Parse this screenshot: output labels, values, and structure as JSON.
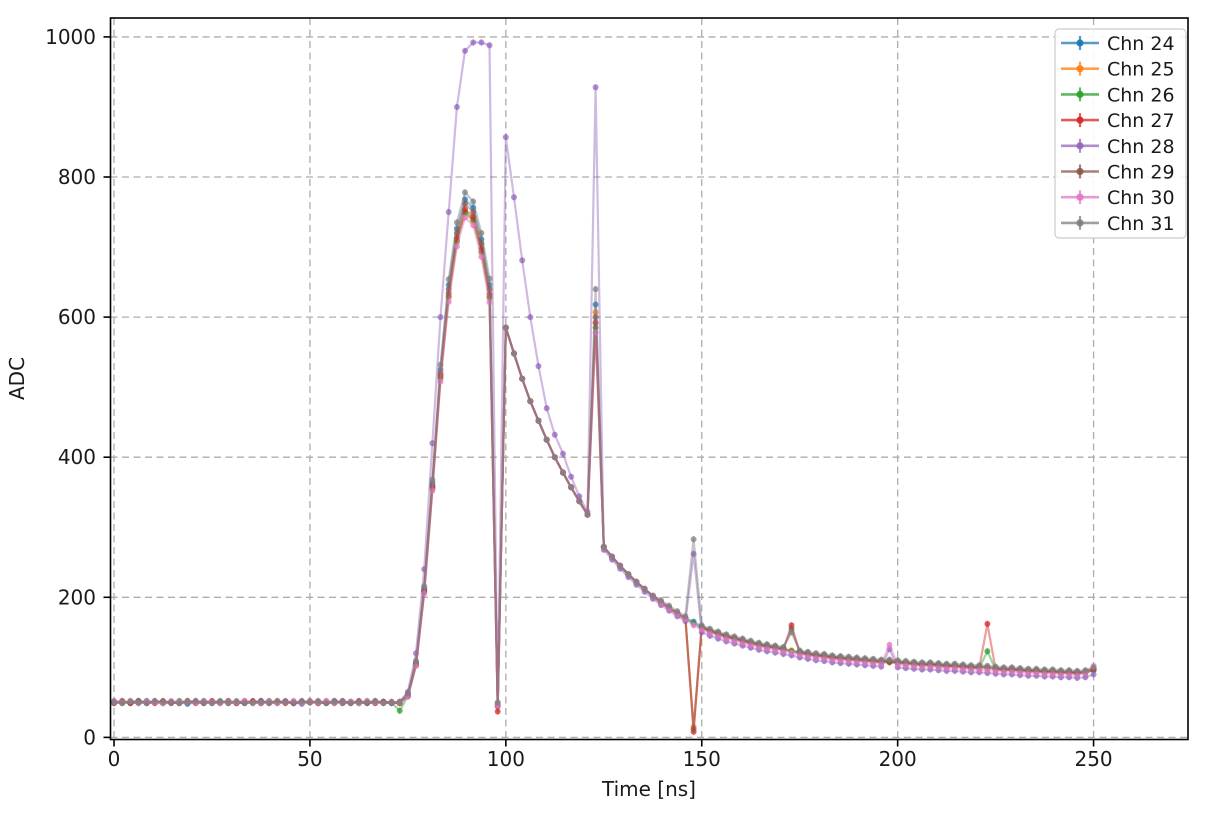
{
  "chart_data": {
    "type": "line",
    "title": "",
    "xlabel": "Time [ns]",
    "ylabel": "ADC",
    "xlim": [
      -0.9,
      274.1
    ],
    "ylim": [
      -3,
      1027
    ],
    "x_ticks": [
      0,
      50,
      100,
      150,
      200,
      250
    ],
    "y_ticks": [
      0,
      200,
      400,
      600,
      800,
      1000
    ],
    "grid": "dashed",
    "legend_position": "upper right",
    "x_start": 0,
    "x_step": 2.0833,
    "marker": "circle-with-errorbar",
    "series": [
      {
        "name": "Chn 24",
        "color": "#1f77b4",
        "values": [
          50,
          51,
          49,
          50,
          52,
          50,
          49,
          51,
          50,
          48,
          50,
          52,
          50,
          49,
          51,
          50,
          49,
          50,
          52,
          50,
          49,
          51,
          50,
          48,
          50,
          51,
          50,
          49,
          51,
          50,
          49,
          50,
          51,
          50,
          49,
          50,
          62,
          107,
          213,
          364,
          525,
          646,
          726,
          768,
          756,
          711,
          646,
          46,
          585,
          548,
          512,
          480,
          452,
          425,
          400,
          378,
          357,
          337,
          318,
          618,
          272,
          258,
          245,
          233,
          222,
          212,
          202,
          193,
          185,
          177,
          170,
          165,
          158,
          153,
          149,
          145,
          142,
          139,
          136,
          133,
          131,
          129,
          127,
          123,
          122,
          120,
          118,
          117,
          115,
          114,
          113,
          112,
          111,
          110,
          109,
          109,
          108,
          107,
          106,
          105,
          105,
          104,
          103,
          103,
          102,
          101,
          101,
          100,
          99,
          98,
          98,
          97,
          96,
          96,
          95,
          95,
          94,
          94,
          93,
          94,
          98
        ]
      },
      {
        "name": "Chn 25",
        "color": "#ff7f0e",
        "values": [
          49,
          50,
          52,
          51,
          49,
          50,
          51,
          49,
          50,
          52,
          49,
          50,
          51,
          50,
          52,
          49,
          50,
          51,
          49,
          50,
          52,
          50,
          49,
          51,
          50,
          49,
          52,
          50,
          51,
          49,
          50,
          52,
          49,
          50,
          51,
          49,
          59,
          103,
          207,
          355,
          512,
          628,
          707,
          748,
          737,
          692,
          627,
          44,
          585,
          548,
          512,
          480,
          452,
          425,
          400,
          378,
          357,
          337,
          318,
          607,
          272,
          258,
          245,
          233,
          222,
          212,
          202,
          193,
          185,
          177,
          170,
          15,
          157,
          152,
          148,
          144,
          141,
          138,
          135,
          132,
          130,
          128,
          126,
          124,
          121,
          119,
          117,
          116,
          114,
          113,
          112,
          111,
          110,
          109,
          108,
          108,
          107,
          106,
          105,
          104,
          104,
          103,
          102,
          102,
          101,
          100,
          100,
          99,
          98,
          97,
          97,
          96,
          95,
          95,
          94,
          94,
          93,
          93,
          92,
          93,
          97
        ]
      },
      {
        "name": "Chn 26",
        "color": "#2ca02c",
        "values": [
          51,
          49,
          50,
          52,
          50,
          51,
          49,
          50,
          52,
          50,
          49,
          51,
          50,
          52,
          49,
          50,
          51,
          49,
          50,
          52,
          50,
          51,
          49,
          50,
          51,
          50,
          49,
          52,
          50,
          51,
          49,
          50,
          51,
          49,
          50,
          38,
          59,
          104,
          208,
          356,
          514,
          630,
          709,
          750,
          739,
          694,
          629,
          45,
          585,
          548,
          512,
          480,
          452,
          425,
          400,
          378,
          357,
          337,
          318,
          585,
          272,
          258,
          245,
          233,
          222,
          212,
          202,
          192,
          184,
          176,
          169,
          163,
          156,
          151,
          147,
          143,
          140,
          137,
          134,
          131,
          129,
          127,
          125,
          123,
          120,
          118,
          116,
          115,
          113,
          112,
          111,
          110,
          109,
          108,
          107,
          107,
          106,
          105,
          104,
          103,
          103,
          102,
          101,
          101,
          100,
          99,
          99,
          123,
          97,
          96,
          96,
          95,
          94,
          94,
          93,
          93,
          92,
          92,
          91,
          92,
          96
        ]
      },
      {
        "name": "Chn 27",
        "color": "#d62728",
        "values": [
          50,
          52,
          49,
          50,
          51,
          49,
          52,
          50,
          49,
          51,
          50,
          49,
          52,
          50,
          51,
          49,
          50,
          52,
          49,
          51,
          50,
          49,
          51,
          50,
          52,
          49,
          50,
          51,
          49,
          50,
          52,
          49,
          50,
          51,
          50,
          49,
          60,
          104,
          209,
          358,
          517,
          634,
          713,
          754,
          743,
          698,
          633,
          37,
          585,
          548,
          512,
          480,
          452,
          425,
          400,
          378,
          357,
          337,
          318,
          592,
          272,
          258,
          245,
          233,
          222,
          212,
          202,
          193,
          185,
          177,
          170,
          8,
          157,
          152,
          148,
          144,
          141,
          138,
          135,
          132,
          130,
          128,
          126,
          160,
          121,
          119,
          117,
          116,
          114,
          113,
          112,
          111,
          110,
          109,
          108,
          108,
          107,
          106,
          105,
          104,
          104,
          103,
          102,
          102,
          101,
          100,
          100,
          162,
          98,
          97,
          97,
          96,
          95,
          95,
          94,
          94,
          93,
          93,
          92,
          93,
          97
        ]
      },
      {
        "name": "Chn 28",
        "color": "#9467bd",
        "values": [
          52,
          50,
          51,
          49,
          50,
          52,
          50,
          49,
          51,
          50,
          52,
          49,
          50,
          51,
          49,
          50,
          52,
          50,
          49,
          51,
          50,
          52,
          49,
          50,
          51,
          49,
          50,
          52,
          49,
          51,
          50,
          49,
          52,
          50,
          49,
          51,
          65,
          120,
          240,
          420,
          600,
          750,
          900,
          980,
          992,
          992,
          988,
          45,
          857,
          771,
          681,
          600,
          530,
          470,
          432,
          405,
          372,
          344,
          322,
          928,
          268,
          254,
          241,
          229,
          218,
          208,
          198,
          189,
          181,
          173,
          166,
          262,
          150,
          145,
          141,
          137,
          134,
          131,
          128,
          125,
          123,
          121,
          119,
          117,
          114,
          112,
          110,
          109,
          107,
          106,
          105,
          104,
          103,
          102,
          101,
          126,
          100,
          99,
          98,
          97,
          97,
          96,
          95,
          95,
          94,
          93,
          93,
          92,
          91,
          90,
          90,
          89,
          88,
          88,
          87,
          87,
          86,
          86,
          85,
          86,
          90
        ]
      },
      {
        "name": "Chn 29",
        "color": "#8c564b",
        "values": [
          49,
          51,
          50,
          52,
          49,
          50,
          51,
          50,
          49,
          52,
          50,
          51,
          49,
          50,
          52,
          49,
          51,
          50,
          52,
          49,
          50,
          51,
          49,
          52,
          50,
          51,
          49,
          50,
          52,
          49,
          51,
          50,
          49,
          51,
          50,
          49,
          60,
          105,
          210,
          360,
          520,
          640,
          720,
          762,
          750,
          705,
          640,
          48,
          585,
          548,
          512,
          480,
          452,
          425,
          400,
          378,
          357,
          337,
          318,
          600,
          272,
          258,
          245,
          233,
          222,
          212,
          202,
          193,
          185,
          177,
          170,
          12,
          158,
          153,
          149,
          145,
          142,
          139,
          136,
          133,
          131,
          129,
          127,
          155,
          122,
          120,
          118,
          117,
          115,
          114,
          113,
          112,
          111,
          110,
          109,
          109,
          108,
          107,
          106,
          105,
          105,
          104,
          103,
          103,
          102,
          101,
          101,
          100,
          99,
          98,
          98,
          97,
          96,
          96,
          95,
          95,
          94,
          94,
          93,
          94,
          98
        ]
      },
      {
        "name": "Chn 30",
        "color": "#e377c2",
        "values": [
          51,
          50,
          52,
          49,
          51,
          50,
          49,
          52,
          50,
          51,
          49,
          52,
          50,
          49,
          51,
          50,
          52,
          49,
          50,
          51,
          49,
          50,
          52,
          49,
          51,
          50,
          52,
          49,
          50,
          51,
          49,
          52,
          50,
          49,
          51,
          50,
          58,
          102,
          205,
          352,
          508,
          622,
          701,
          742,
          731,
          686,
          621,
          46,
          585,
          548,
          512,
          480,
          452,
          425,
          400,
          378,
          357,
          337,
          318,
          578,
          272,
          258,
          245,
          233,
          222,
          212,
          202,
          192,
          184,
          176,
          169,
          160,
          154,
          149,
          145,
          141,
          138,
          135,
          132,
          129,
          127,
          125,
          123,
          121,
          118,
          116,
          114,
          113,
          111,
          110,
          109,
          108,
          107,
          106,
          105,
          132,
          104,
          103,
          102,
          101,
          101,
          100,
          99,
          99,
          98,
          97,
          97,
          96,
          95,
          94,
          94,
          93,
          92,
          92,
          91,
          91,
          90,
          90,
          89,
          92,
          102
        ]
      },
      {
        "name": "Chn 31",
        "color": "#7f7f7f",
        "values": [
          50,
          49,
          51,
          50,
          49,
          52,
          51,
          50,
          49,
          51,
          52,
          50,
          49,
          51,
          50,
          52,
          49,
          50,
          51,
          49,
          52,
          50,
          49,
          51,
          50,
          52,
          49,
          51,
          50,
          49,
          51,
          50,
          52,
          49,
          50,
          51,
          63,
          109,
          216,
          368,
          532,
          654,
          735,
          778,
          765,
          720,
          655,
          50,
          585,
          548,
          512,
          480,
          452,
          425,
          400,
          378,
          357,
          337,
          318,
          640,
          272,
          258,
          245,
          233,
          222,
          212,
          202,
          196,
          188,
          180,
          173,
          283,
          160,
          155,
          151,
          147,
          144,
          141,
          138,
          135,
          133,
          131,
          129,
          150,
          124,
          122,
          120,
          119,
          117,
          116,
          115,
          114,
          113,
          112,
          111,
          111,
          110,
          109,
          108,
          107,
          107,
          106,
          105,
          105,
          104,
          103,
          103,
          102,
          101,
          100,
          100,
          99,
          98,
          98,
          97,
          97,
          96,
          96,
          95,
          96,
          100
        ]
      }
    ]
  },
  "style": {
    "background": "#ffffff",
    "grid_color": "#adadad",
    "spine_color": "#000000",
    "text_color": "#1a1a1a",
    "legend_border_color": "#cccccc",
    "legend_background": "#ffffff"
  }
}
